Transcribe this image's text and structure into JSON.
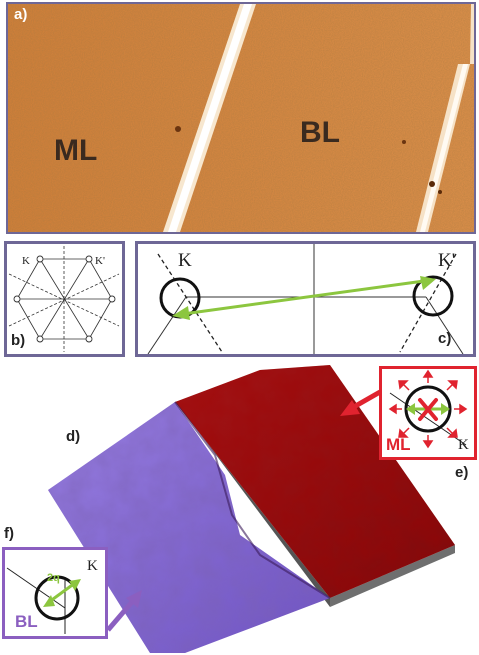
{
  "panel_a": {
    "label": "a)",
    "ml_label": "ML",
    "bl_label": "BL"
  },
  "panel_b": {
    "label": "b)",
    "k_label": "K",
    "kprime_label": "K'"
  },
  "panel_c": {
    "label": "c)",
    "k_label": "K",
    "kprime_label": "K'"
  },
  "panel_d": {
    "label": "d)"
  },
  "panel_e": {
    "label": "e)",
    "ml_label": "ML",
    "k_label": "K"
  },
  "panel_f": {
    "label": "f)",
    "bl_label": "BL",
    "k_label": "K",
    "q_label": "2q"
  },
  "colors": {
    "stm_orange": "#d9823c",
    "frame_purple": "#6e6796",
    "arrow_green": "#8cc63f",
    "ml_red": "#e0232f",
    "bl_purple": "#8b5fc0",
    "surface_red": "#8e0e10",
    "surface_violet": "#7c5ed0"
  }
}
